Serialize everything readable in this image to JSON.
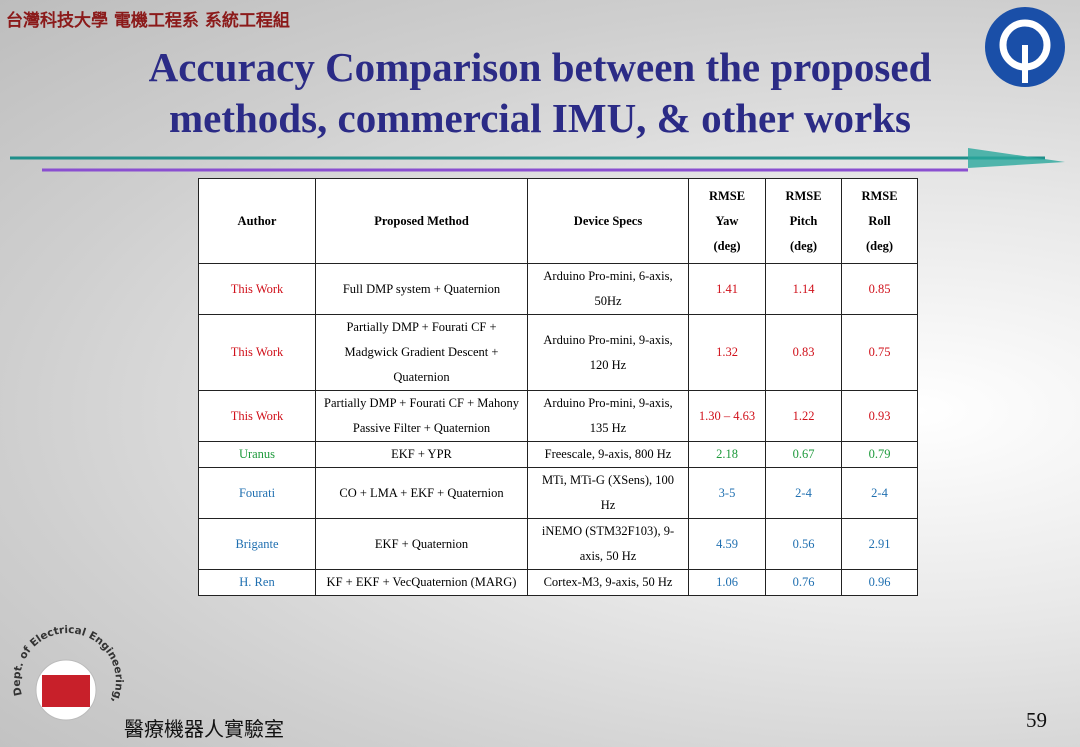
{
  "header": {
    "institution": "台灣科技大學 電機工程系 系統工程組",
    "title_lines": [
      "Accuracy Comparison between the proposed",
      "methods, commercial IMU, & other works"
    ]
  },
  "table": {
    "columns": [
      [
        "Author"
      ],
      [
        "Proposed Method"
      ],
      [
        "Device Specs"
      ],
      [
        "RMSE",
        "Yaw",
        "(deg)"
      ],
      [
        "RMSE",
        "Pitch",
        "(deg)"
      ],
      [
        "RMSE",
        "Roll",
        "(deg)"
      ]
    ],
    "rows": [
      {
        "color": "#d0101a",
        "cells": [
          "This Work",
          "Full DMP system + Quaternion",
          "Arduino Pro-mini, 6-axis, 50Hz",
          "1.41",
          "1.14",
          "0.85"
        ]
      },
      {
        "color": "#d0101a",
        "cells": [
          "This Work",
          "Partially DMP + Fourati CF + Madgwick Gradient Descent + Quaternion",
          "Arduino Pro-mini, 9-axis, 120 Hz",
          "1.32",
          "0.83",
          "0.75"
        ]
      },
      {
        "color": "#d0101a",
        "cells": [
          "This Work",
          "Partially DMP + Fourati CF + Mahony Passive Filter + Quaternion",
          "Arduino Pro-mini, 9-axis, 135 Hz",
          "1.30 – 4.63",
          "1.22",
          "0.93"
        ]
      },
      {
        "color": "#1e9a3c",
        "cells": [
          "Uranus",
          "EKF + YPR",
          "Freescale, 9-axis, 800 Hz",
          "2.18",
          "0.67",
          "0.79"
        ]
      },
      {
        "color": "#1f6fb0",
        "cells": [
          "Fourati",
          "CO + LMA + EKF + Quaternion",
          "MTi, MTi-G (XSens), 100 Hz",
          "3-5",
          "2-4",
          "2-4"
        ]
      },
      {
        "color": "#1f6fb0",
        "cells": [
          "Brigante",
          "EKF + Quaternion",
          "iNEMO (STM32F103), 9-axis, 50 Hz",
          "4.59",
          "0.56",
          "2.91"
        ]
      },
      {
        "color": "#1f6fb0",
        "cells": [
          "H. Ren",
          "KF + EKF + VecQuaternion (MARG)",
          "Cortex-M3, 9-axis, 50 Hz",
          "1.06",
          "0.76",
          "0.96"
        ]
      }
    ]
  },
  "footer": {
    "department_seal": "Dept. of Electrical Engineering, National Taiwan Univ. of Sci and Tech",
    "lab": "醫療機器人實驗室",
    "page_number": "59"
  }
}
